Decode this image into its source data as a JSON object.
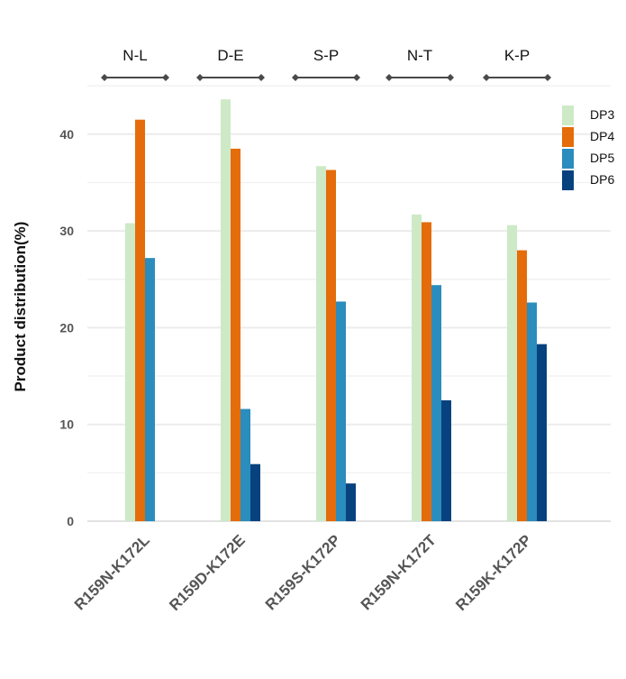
{
  "chart_data": {
    "type": "bar",
    "title": "",
    "xlabel": "",
    "ylabel": "Product distribution(%)",
    "ylim": [
      0,
      45
    ],
    "yticks": [
      0,
      10,
      20,
      30,
      40
    ],
    "grid": true,
    "legend_position": "top-right",
    "categories": [
      "R159N-K172L",
      "R159D-K172E",
      "R159S-K172P",
      "R159N-K172T",
      "R159K-K172P"
    ],
    "group_labels": [
      "N-L",
      "D-E",
      "S-P",
      "N-T",
      "K-P"
    ],
    "series": [
      {
        "name": "DP3",
        "color": "#cde9c6",
        "values": [
          30.8,
          43.6,
          36.7,
          31.7,
          30.6
        ]
      },
      {
        "name": "DP4",
        "color": "#e46c0a",
        "values": [
          41.5,
          38.5,
          36.3,
          30.9,
          28.0
        ]
      },
      {
        "name": "DP5",
        "color": "#2b8cbe",
        "values": [
          27.2,
          11.6,
          22.7,
          24.4,
          22.6
        ]
      },
      {
        "name": "DP6",
        "color": "#08427e",
        "values": [
          null,
          5.9,
          3.9,
          12.5,
          18.3
        ]
      }
    ]
  }
}
